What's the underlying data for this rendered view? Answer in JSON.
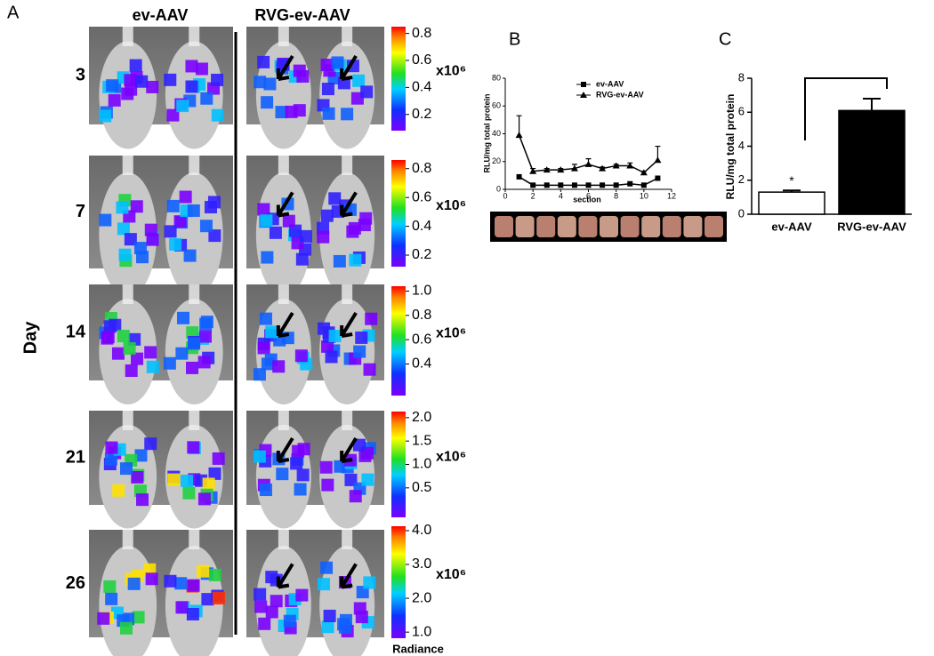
{
  "panel_a": {
    "label": "A",
    "columns": [
      "ev-AAV",
      "RVG-ev-AAV"
    ],
    "row_axis_label": "Day",
    "radiance_label": "Radiance",
    "rows": [
      {
        "day": "3",
        "scale_unit": "x10⁶",
        "scale_lim": [
          0.08,
          0.85
        ],
        "scale_ticks": [
          0.2,
          0.4,
          0.6,
          0.8
        ]
      },
      {
        "day": "7",
        "scale_unit": "x10⁶",
        "scale_lim": [
          0.12,
          0.86
        ],
        "scale_ticks": [
          0.2,
          0.4,
          0.6,
          0.8
        ]
      },
      {
        "day": "14",
        "scale_unit": "x10⁶",
        "scale_lim": [
          0.14,
          1.04
        ],
        "scale_ticks": [
          0.4,
          0.6,
          0.8,
          {
            "value": 1,
            "label": "1.0"
          }
        ]
      },
      {
        "day": "21",
        "scale_unit": "x10⁶",
        "scale_lim": [
          -0.13,
          2.13
        ],
        "scale_ticks": [
          0.5,
          {
            "value": 1,
            "label": "1.0"
          },
          1.5,
          {
            "value": 2,
            "label": "2.0"
          }
        ]
      },
      {
        "day": "26",
        "scale_unit": "x10⁶",
        "scale_lim": [
          0.82,
          4.13
        ],
        "scale_ticks": [
          {
            "value": 1,
            "label": "1.0"
          },
          {
            "value": 2,
            "label": "2.0"
          },
          {
            "value": 3,
            "label": "3.0"
          },
          {
            "value": 4,
            "label": "4.0"
          }
        ]
      }
    ]
  },
  "chart_data": [
    {
      "type": "line",
      "panel_label": "B",
      "x_label": "section",
      "y_label": "RLU/mg total protein",
      "xlim": [
        0,
        12
      ],
      "xticks": [
        0,
        2,
        4,
        6,
        8,
        10,
        12
      ],
      "ylim": [
        0,
        80
      ],
      "yticks": [
        0,
        20,
        40,
        60,
        80
      ],
      "legend": "top-right",
      "x": [
        1,
        2,
        3,
        4,
        5,
        6,
        7,
        8,
        9,
        10,
        11
      ],
      "series": [
        {
          "name": "ev-AAV",
          "color": "#000000",
          "marker": "square",
          "values": [
            9,
            3,
            3,
            3,
            3,
            3,
            3,
            3,
            4,
            3,
            8
          ]
        },
        {
          "name": "RVG-ev-AAV",
          "color": "#000000",
          "marker": "triangle",
          "values": [
            39,
            13,
            14,
            14,
            15,
            18,
            15,
            17,
            17,
            12,
            21
          ],
          "errors": [
            14,
            2,
            1,
            1,
            3,
            4,
            1,
            1,
            2,
            1,
            10
          ]
        }
      ]
    },
    {
      "type": "bar",
      "panel_label": "C",
      "y_label": "RLU/mg total protein",
      "categories": [
        "ev-AAV",
        "RVG-ev-AAV"
      ],
      "values": [
        1.3,
        6.1
      ],
      "errors": [
        0.1,
        0.7
      ],
      "colors": [
        "#ffffff",
        "#000000"
      ],
      "ylim": [
        0,
        8
      ],
      "yticks": [
        0,
        2,
        4,
        6,
        8
      ],
      "annotation": "*"
    }
  ]
}
